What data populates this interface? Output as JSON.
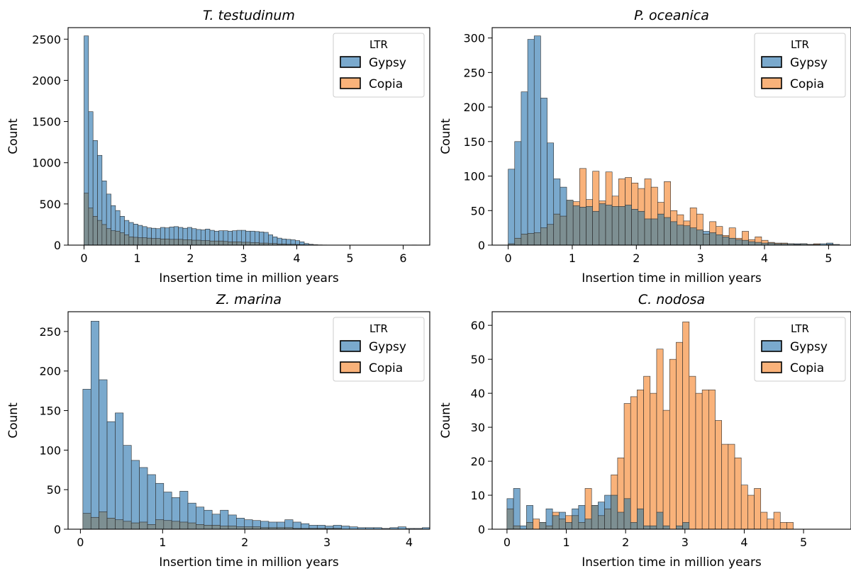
{
  "figure": {
    "legend_title": "LTR"
  },
  "chart_data": [
    {
      "type": "histogram",
      "title": "T. testudinum",
      "xlabel": "Insertion time in million years",
      "ylabel": "Count",
      "xlim": [
        -0.3,
        6.5
      ],
      "ylim": [
        0,
        2640
      ],
      "xticks": [
        0,
        1,
        2,
        3,
        4,
        5,
        6
      ],
      "yticks": [
        0,
        500,
        1000,
        1500,
        2000,
        2500
      ],
      "bin_start": 0.0,
      "bin_width": 0.0845,
      "legend": {
        "title": "LTR",
        "position": "top-right"
      },
      "series": [
        {
          "name": "Gypsy",
          "color": "#1f77b4",
          "values": [
            2540,
            1620,
            1270,
            1090,
            780,
            620,
            480,
            420,
            350,
            300,
            275,
            255,
            240,
            225,
            210,
            205,
            200,
            215,
            210,
            220,
            225,
            215,
            205,
            215,
            200,
            190,
            185,
            195,
            180,
            170,
            175,
            175,
            170,
            175,
            180,
            180,
            170,
            170,
            165,
            160,
            155,
            125,
            100,
            85,
            75,
            70,
            65,
            55,
            40,
            20,
            10,
            5,
            3,
            2,
            1,
            0,
            0,
            0,
            0,
            0,
            0,
            0,
            0,
            0,
            0,
            0,
            0,
            0,
            0,
            0,
            0,
            0,
            0,
            2
          ]
        },
        {
          "name": "Copia",
          "color": "#ff7f0e",
          "values": [
            630,
            450,
            350,
            300,
            250,
            200,
            175,
            170,
            150,
            125,
            100,
            95,
            90,
            90,
            85,
            80,
            80,
            75,
            75,
            70,
            70,
            70,
            65,
            65,
            60,
            60,
            55,
            55,
            50,
            50,
            50,
            45,
            40,
            40,
            40,
            35,
            35,
            30,
            30,
            25,
            25,
            20,
            20,
            15,
            15,
            10,
            10,
            8,
            5,
            4,
            3,
            2,
            1
          ]
        }
      ]
    },
    {
      "type": "histogram",
      "title": "P. oceanica",
      "xlabel": "Insertion time in million years",
      "ylabel": "Count",
      "xlim": [
        -0.25,
        5.35
      ],
      "ylim": [
        0,
        315
      ],
      "xticks": [
        0,
        1,
        2,
        3,
        4,
        5
      ],
      "yticks": [
        0,
        50,
        100,
        150,
        200,
        250,
        300
      ],
      "bin_start": 0.0,
      "bin_width": 0.1014,
      "legend": {
        "title": "LTR",
        "position": "top-right"
      },
      "series": [
        {
          "name": "Gypsy",
          "color": "#1f77b4",
          "values": [
            110,
            150,
            222,
            298,
            303,
            213,
            148,
            96,
            84,
            65,
            57,
            55,
            56,
            49,
            60,
            58,
            56,
            56,
            58,
            52,
            49,
            38,
            38,
            45,
            40,
            34,
            29,
            28,
            25,
            22,
            20,
            18,
            15,
            12,
            10,
            8,
            7,
            5,
            4,
            3,
            3,
            2,
            2,
            2,
            2,
            2,
            1,
            1,
            2,
            3,
            1
          ]
        },
        {
          "name": "Copia",
          "color": "#ff7f0e",
          "values": [
            2,
            10,
            16,
            17,
            18,
            25,
            30,
            45,
            42,
            65,
            63,
            111,
            66,
            107,
            64,
            106,
            71,
            96,
            98,
            90,
            82,
            96,
            84,
            62,
            92,
            50,
            44,
            35,
            54,
            45,
            16,
            34,
            27,
            14,
            25,
            10,
            20,
            8,
            12,
            7,
            4,
            3,
            3,
            2,
            1,
            2,
            1,
            2,
            0,
            1,
            0,
            0,
            0,
            0,
            0,
            0,
            0,
            0,
            0
          ]
        }
      ]
    },
    {
      "type": "histogram",
      "title": "Z. marina",
      "xlabel": "Insertion time in million years",
      "ylabel": "Count",
      "xlim": [
        -0.15,
        4.25
      ],
      "ylim": [
        0,
        275
      ],
      "xticks": [
        0,
        1,
        2,
        3,
        4
      ],
      "yticks": [
        0,
        50,
        100,
        150,
        200,
        250
      ],
      "bin_start": 0.03,
      "bin_width": 0.0983,
      "legend": {
        "title": "LTR",
        "position": "top-right"
      },
      "series": [
        {
          "name": "Gypsy",
          "color": "#1f77b4",
          "values": [
            177,
            263,
            189,
            136,
            147,
            106,
            87,
            78,
            69,
            58,
            47,
            40,
            48,
            33,
            28,
            24,
            19,
            24,
            18,
            14,
            12,
            11,
            10,
            9,
            9,
            12,
            9,
            7,
            5,
            5,
            4,
            5,
            4,
            3,
            2,
            2,
            2,
            1,
            2,
            3,
            1,
            1,
            2,
            1,
            4,
            1,
            1,
            2,
            1,
            1,
            1,
            1,
            1,
            1,
            1,
            1,
            1,
            1,
            1,
            1,
            1,
            1,
            1,
            1
          ]
        },
        {
          "name": "Copia",
          "color": "#ff7f0e",
          "values": [
            20,
            15,
            22,
            14,
            12,
            10,
            8,
            9,
            6,
            12,
            11,
            10,
            9,
            8,
            6,
            5,
            5,
            4,
            4,
            3,
            3,
            3,
            2,
            2,
            2,
            2,
            1,
            1,
            1,
            1,
            1,
            1
          ]
        }
      ]
    },
    {
      "type": "histogram",
      "title": "C. nodosa",
      "xlabel": "Insertion time in million years",
      "ylabel": "Count",
      "xlim": [
        -0.25,
        5.8
      ],
      "ylim": [
        0,
        64
      ],
      "xticks": [
        0,
        1,
        2,
        3,
        4,
        5
      ],
      "yticks": [
        0,
        10,
        20,
        30,
        40,
        50,
        60
      ],
      "bin_start": 0.0,
      "bin_width": 0.1097,
      "legend": {
        "title": "LTR",
        "position": "top-right"
      },
      "series": [
        {
          "name": "Gypsy",
          "color": "#1f77b4",
          "values": [
            9,
            12,
            1,
            7,
            0,
            2,
            6,
            4,
            5,
            2,
            6,
            7,
            3,
            7,
            8,
            10,
            10,
            5,
            9,
            2,
            6,
            1,
            1,
            5,
            1,
            0,
            1,
            2,
            0,
            0,
            0
          ]
        },
        {
          "name": "Copia",
          "color": "#ff7f0e",
          "values": [
            6,
            1,
            0,
            2,
            3,
            2,
            1,
            5,
            3,
            4,
            4,
            2,
            12,
            7,
            4,
            6,
            16,
            21,
            37,
            39,
            41,
            45,
            40,
            53,
            35,
            50,
            55,
            61,
            45,
            40,
            41,
            41,
            32,
            25,
            25,
            21,
            13,
            10,
            12,
            5,
            3,
            5,
            2,
            2,
            0,
            0,
            0,
            0,
            0,
            0,
            0,
            0,
            0,
            0,
            0,
            0,
            0,
            0,
            0,
            0,
            0,
            0,
            0,
            0,
            0,
            0,
            0,
            0,
            0,
            0,
            0,
            0,
            0,
            1
          ]
        }
      ]
    }
  ]
}
